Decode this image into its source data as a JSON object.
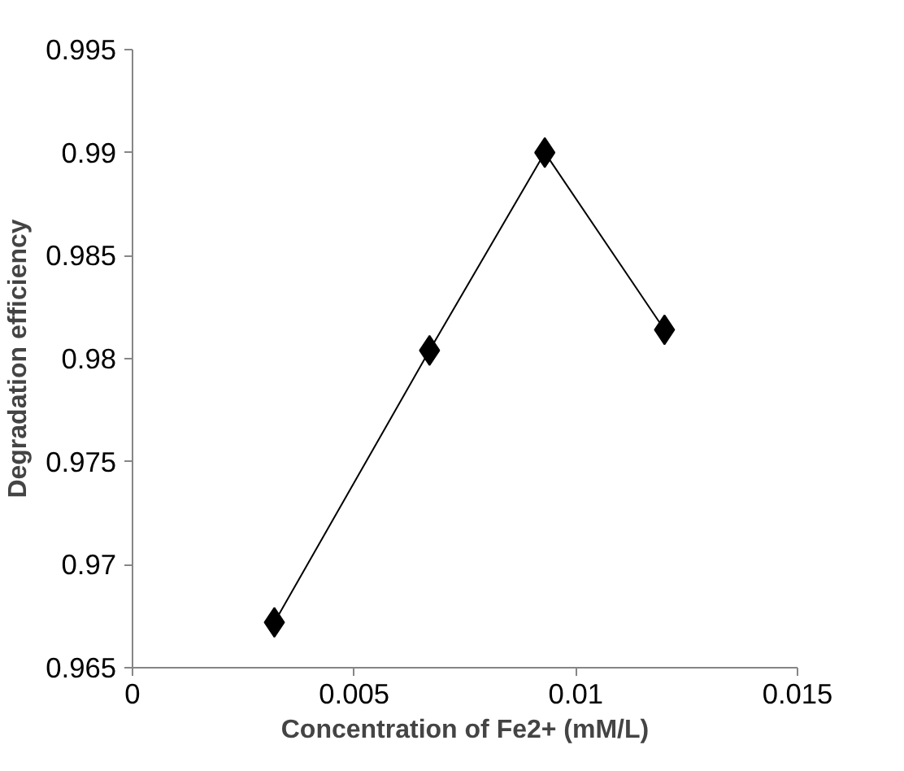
{
  "chart_data": {
    "type": "line",
    "xlabel": "Concentration of Fe2+ (mM/L)",
    "ylabel": "Degradation efficiency",
    "x": [
      0.0032,
      0.0067,
      0.0093,
      0.012
    ],
    "series": [
      {
        "color": "#000000",
        "values": [
          0.9672,
          0.9804,
          0.99,
          0.9814
        ]
      }
    ],
    "marker": "diamond",
    "line_style": "solid",
    "grid": false,
    "xlim": [
      0,
      0.015
    ],
    "xticks": [
      0,
      0.005,
      0.01,
      0.015
    ],
    "ylim": [
      0.965,
      0.995
    ],
    "yticks": [
      0.965,
      0.97,
      0.975,
      0.98,
      0.985,
      0.99,
      0.995
    ]
  }
}
